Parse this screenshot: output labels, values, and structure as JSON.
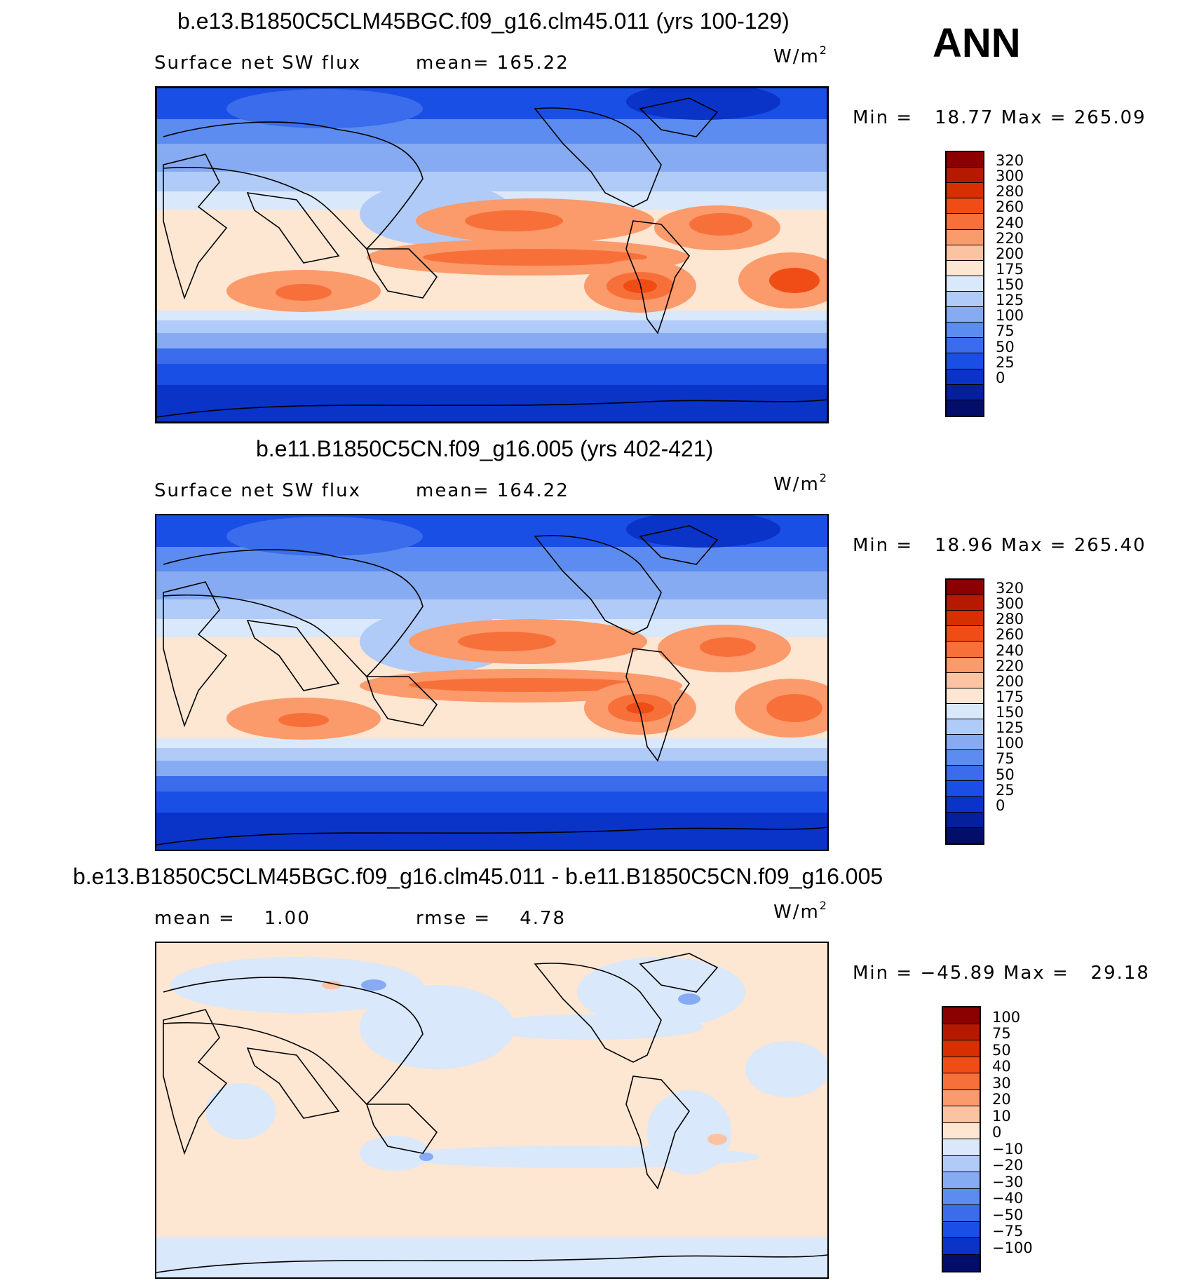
{
  "season": "ANN",
  "panels": [
    {
      "title": "b.e13.B1850C5CLM45BGC.f09_g16.clm45.011 (yrs 100-129)",
      "left_label": "Surface net SW flux",
      "mid_label": "mean= 165.22",
      "unit_base": "W/m",
      "unit_exp": "2",
      "minmax": "Min =   18.77 Max = 265.09",
      "levels": [
        "320",
        "300",
        "280",
        "260",
        "240",
        "220",
        "200",
        "175",
        "150",
        "125",
        "100",
        "75",
        "50",
        "25",
        "0"
      ],
      "colors": [
        "#8b0000",
        "#b51a00",
        "#d62f00",
        "#f04d16",
        "#f7703a",
        "#fb9a6b",
        "#fcc3a2",
        "#fde6d2",
        "#d9e8fb",
        "#b0cbf7",
        "#86abf2",
        "#5c8cef",
        "#3a6ceb",
        "#1a4fe6",
        "#0a33c8",
        "#061f9c",
        "#030e6b"
      ]
    },
    {
      "title": "b.e11.B1850C5CN.f09_g16.005 (yrs 402-421)",
      "left_label": "Surface net SW flux",
      "mid_label": "mean= 164.22",
      "unit_base": "W/m",
      "unit_exp": "2",
      "minmax": "Min =   18.96 Max = 265.40",
      "levels": [
        "320",
        "300",
        "280",
        "260",
        "240",
        "220",
        "200",
        "175",
        "150",
        "125",
        "100",
        "75",
        "50",
        "25",
        "0"
      ],
      "colors": [
        "#8b0000",
        "#b51a00",
        "#d62f00",
        "#f04d16",
        "#f7703a",
        "#fb9a6b",
        "#fcc3a2",
        "#fde6d2",
        "#d9e8fb",
        "#b0cbf7",
        "#86abf2",
        "#5c8cef",
        "#3a6ceb",
        "#1a4fe6",
        "#0a33c8",
        "#061f9c",
        "#030e6b"
      ]
    },
    {
      "title": "b.e13.B1850C5CLM45BGC.f09_g16.clm45.011 - b.e11.B1850C5CN.f09_g16.005",
      "left_label": "mean =    1.00",
      "mid_label": "rmse =    4.78",
      "unit_base": "W/m",
      "unit_exp": "2",
      "minmax": "Min = −45.89 Max =   29.18",
      "levels": [
        "100",
        "75",
        "50",
        "40",
        "30",
        "20",
        "10",
        "0",
        "−10",
        "−20",
        "−30",
        "−40",
        "−50",
        "−75",
        "−100"
      ],
      "colors": [
        "#8b0000",
        "#b51a00",
        "#d62f00",
        "#f04d16",
        "#f7703a",
        "#fb9a6b",
        "#fcc3a2",
        "#fde6d2",
        "#d9e8fb",
        "#b0cbf7",
        "#86abf2",
        "#5c8cef",
        "#3a6ceb",
        "#1a4fe6",
        "#0a33c8",
        "#030e6b"
      ]
    }
  ]
}
